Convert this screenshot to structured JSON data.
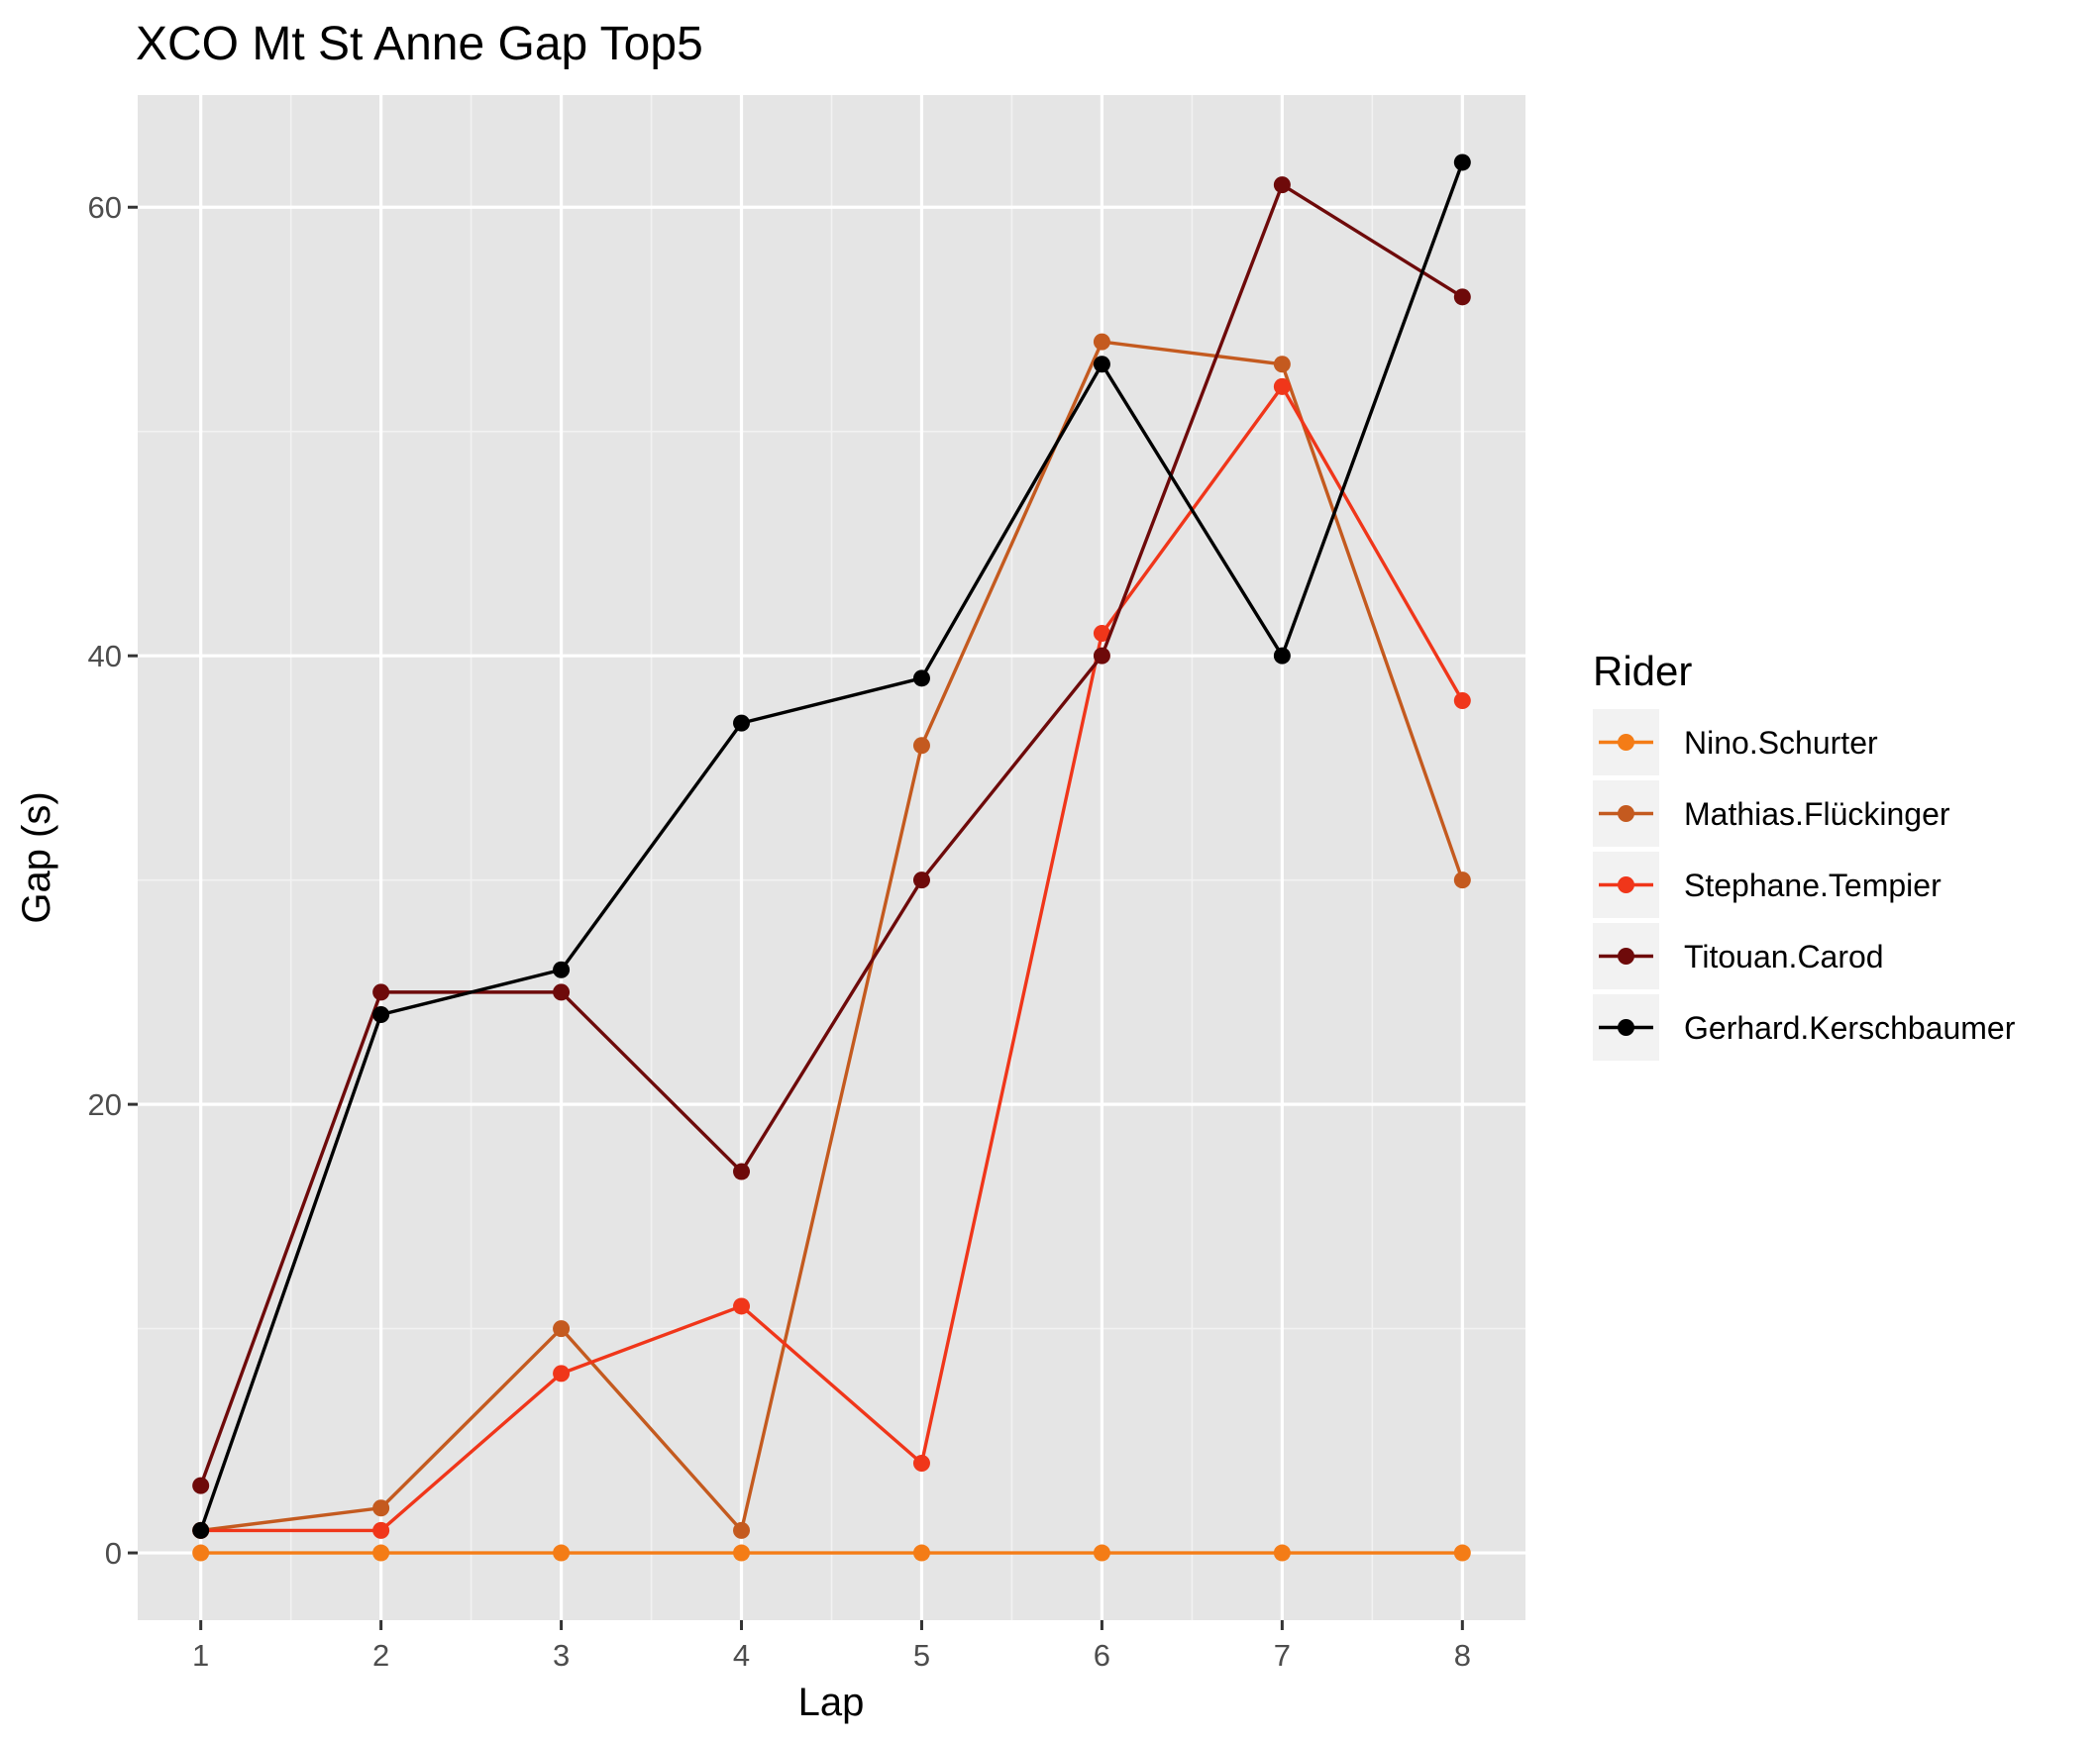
{
  "chart_data": {
    "type": "line",
    "title": "XCO Mt St Anne Gap Top5",
    "xlabel": "Lap",
    "ylabel": "Gap (s)",
    "x": [
      1,
      2,
      3,
      4,
      5,
      6,
      7,
      8
    ],
    "xlim": [
      0.65,
      8.35
    ],
    "ylim": [
      -3,
      65
    ],
    "yticks": [
      0,
      20,
      40,
      60
    ],
    "grid": true,
    "legend": {
      "title": "Rider",
      "position": "right"
    },
    "series": [
      {
        "name": "Nino.Schurter",
        "color": "#f47c16",
        "values": [
          0,
          0,
          0,
          0,
          0,
          0,
          0,
          0
        ]
      },
      {
        "name": "Mathias.Flückinger",
        "color": "#c45a1f",
        "values": [
          1,
          2,
          10,
          1,
          36,
          54,
          53,
          30
        ]
      },
      {
        "name": "Stephane.Tempier",
        "color": "#f0361a",
        "values": [
          1,
          1,
          8,
          11,
          4,
          41,
          52,
          38
        ]
      },
      {
        "name": "Titouan.Carod",
        "color": "#6e0a0a",
        "values": [
          3,
          25,
          25,
          17,
          30,
          40,
          61,
          56
        ]
      },
      {
        "name": "Gerhard.Kerschbaumer",
        "color": "#000000",
        "values": [
          1,
          24,
          26,
          37,
          39,
          53,
          40,
          62
        ]
      }
    ]
  }
}
